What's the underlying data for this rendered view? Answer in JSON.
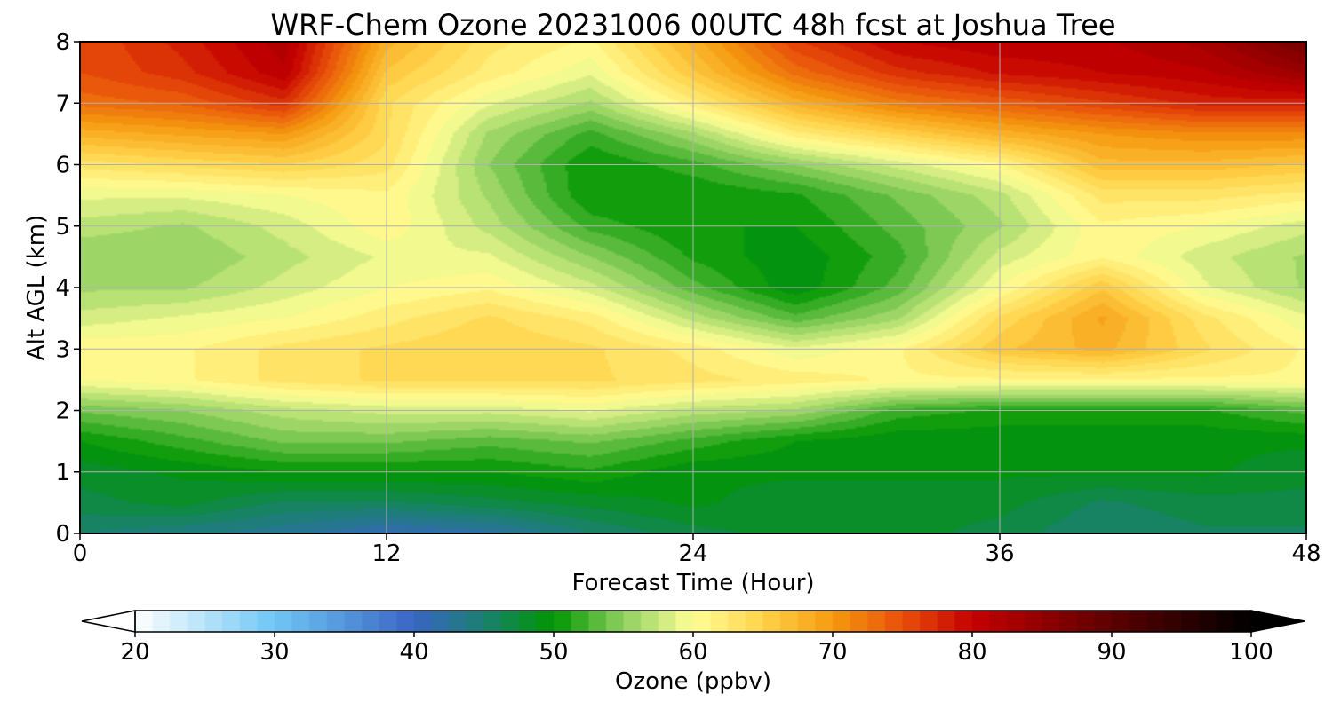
{
  "chart_data": {
    "type": "heatmap",
    "title": "WRF-Chem Ozone  20231006 00UTC 48h fcst at Joshua Tree",
    "xlabel": "Forecast Time (Hour)",
    "ylabel": "Alt AGL (km)",
    "xlim": [
      0,
      48
    ],
    "ylim": [
      0,
      8
    ],
    "x_ticks": [
      0,
      12,
      24,
      36,
      48
    ],
    "y_ticks": [
      0,
      1,
      2,
      3,
      4,
      5,
      6,
      7,
      8
    ],
    "grid": true,
    "x_hours": [
      0,
      4,
      8,
      12,
      16,
      20,
      24,
      28,
      32,
      36,
      40,
      44,
      48
    ],
    "y_km": [
      0,
      0.5,
      1,
      1.5,
      2,
      2.5,
      3,
      3.5,
      4,
      4.5,
      5,
      5.5,
      6,
      6.5,
      7,
      7.5,
      8
    ],
    "values_ppbv": [
      [
        45,
        44,
        43,
        41,
        42,
        45,
        47,
        48,
        48,
        47,
        45,
        46,
        46
      ],
      [
        47,
        48,
        46,
        46,
        47,
        48,
        49,
        48,
        48,
        48,
        46,
        47,
        47
      ],
      [
        48,
        49,
        50,
        50,
        50,
        51,
        49,
        49,
        49,
        49,
        49,
        49,
        48
      ],
      [
        50,
        52,
        54,
        54,
        53,
        54,
        52,
        50,
        49,
        49,
        49,
        49,
        49
      ],
      [
        54,
        55,
        57,
        58,
        58,
        59,
        57,
        56,
        52,
        51,
        51,
        51,
        53
      ],
      [
        60,
        61,
        63,
        64,
        64,
        64,
        63,
        62,
        61,
        61,
        61,
        61,
        61
      ],
      [
        61,
        61,
        63,
        64,
        65,
        64,
        62,
        59,
        61,
        66,
        68,
        64,
        61
      ],
      [
        58,
        59,
        60,
        62,
        64,
        62,
        57,
        53,
        56,
        64,
        69,
        63,
        59
      ],
      [
        56,
        56,
        58,
        60,
        61,
        58,
        53,
        49,
        53,
        60,
        66,
        59,
        56
      ],
      [
        55,
        55,
        57,
        59,
        59,
        55,
        51,
        49,
        52,
        58,
        61,
        58,
        56
      ],
      [
        57,
        56,
        58,
        61,
        57,
        52,
        50,
        50,
        53,
        56,
        61,
        60,
        58
      ],
      [
        59,
        59,
        60,
        61,
        56,
        50,
        50,
        51,
        54,
        57,
        63,
        63,
        62
      ],
      [
        63,
        64,
        65,
        63,
        55,
        50,
        52,
        55,
        58,
        61,
        67,
        67,
        66
      ],
      [
        68,
        69,
        70,
        64,
        56,
        52,
        56,
        62,
        65,
        68,
        70,
        71,
        71
      ],
      [
        73,
        74,
        77,
        64,
        59,
        56,
        62,
        68,
        72,
        74,
        76,
        78,
        78
      ],
      [
        75,
        77,
        81,
        66,
        62,
        59,
        66,
        73,
        77,
        79,
        80,
        81,
        84
      ],
      [
        75,
        78,
        82,
        68,
        63,
        61,
        68,
        76,
        80,
        81,
        81,
        83,
        88
      ]
    ],
    "colorbar": {
      "label": "Ozone  (ppbv)",
      "min": 20,
      "max": 100,
      "ticks": [
        20,
        30,
        40,
        50,
        60,
        70,
        80,
        90,
        100
      ],
      "extend": "both",
      "stops": [
        {
          "v": 20,
          "c": "#ffffff"
        },
        {
          "v": 30,
          "c": "#6fc6f5"
        },
        {
          "v": 40,
          "c": "#3a65c4"
        },
        {
          "v": 45,
          "c": "#1a8070"
        },
        {
          "v": 50,
          "c": "#009600"
        },
        {
          "v": 55,
          "c": "#8fd060"
        },
        {
          "v": 60,
          "c": "#ffff96"
        },
        {
          "v": 65,
          "c": "#ffd24a"
        },
        {
          "v": 70,
          "c": "#f59a10"
        },
        {
          "v": 75,
          "c": "#e8500a"
        },
        {
          "v": 80,
          "c": "#c40000"
        },
        {
          "v": 90,
          "c": "#5c0000"
        },
        {
          "v": 100,
          "c": "#000000"
        }
      ]
    }
  }
}
